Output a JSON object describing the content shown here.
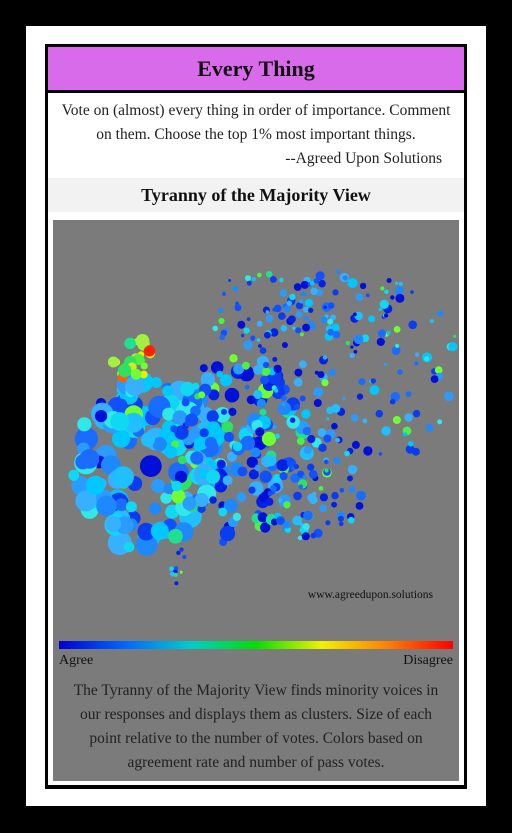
{
  "header": {
    "title": "Every Thing"
  },
  "intro": {
    "text": "Vote on (almost) every thing in order of importance. Comment on them. Choose the top 1% most important things.",
    "attribution": "--Agreed Upon Solutions"
  },
  "view": {
    "title": "Tyranny of the Majority View",
    "watermark": "www.agreedupon.solutions",
    "scale_left_label": "Agree",
    "scale_right_label": "Disagree",
    "description": "The Tyranny of the Majority View finds minority voices in our responses and displays them as clusters. Size of each point relative to the number of votes. Colors based on agreement rate and number of pass votes."
  },
  "colors": {
    "title_bar": "#d76be9",
    "panel_background": "#7b7b7b",
    "scale": [
      "#0000d0",
      "#0066ff",
      "#00cccc",
      "#00e000",
      "#f0f000",
      "#ff8000",
      "#ff0000"
    ]
  }
}
